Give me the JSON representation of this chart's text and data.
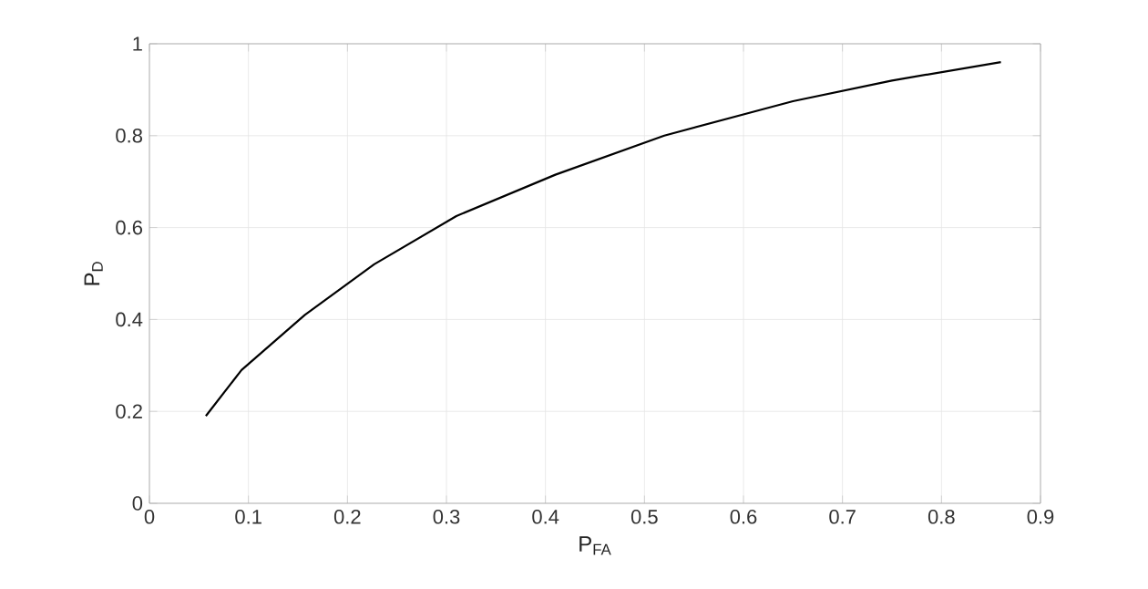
{
  "chart_data": {
    "type": "line",
    "xlabel": "P$_{FA}$",
    "ylabel": "P$_{D}$",
    "x": [
      0.057,
      0.093,
      0.157,
      0.227,
      0.31,
      0.41,
      0.52,
      0.65,
      0.75,
      0.86
    ],
    "series": [
      {
        "color": "#000000",
        "values": [
          0.19,
          0.29,
          0.41,
          0.52,
          0.625,
          0.715,
          0.8,
          0.875,
          0.92,
          0.96
        ]
      }
    ],
    "xlim": [
      0,
      0.9
    ],
    "ylim": [
      0,
      1
    ],
    "xticks": [
      0,
      0.1,
      0.2,
      0.3,
      0.4,
      0.5,
      0.6,
      0.7,
      0.8,
      0.9
    ],
    "yticks": [
      0,
      0.2,
      0.4,
      0.6,
      0.8,
      1
    ],
    "grid": true,
    "line_style": "solid"
  }
}
